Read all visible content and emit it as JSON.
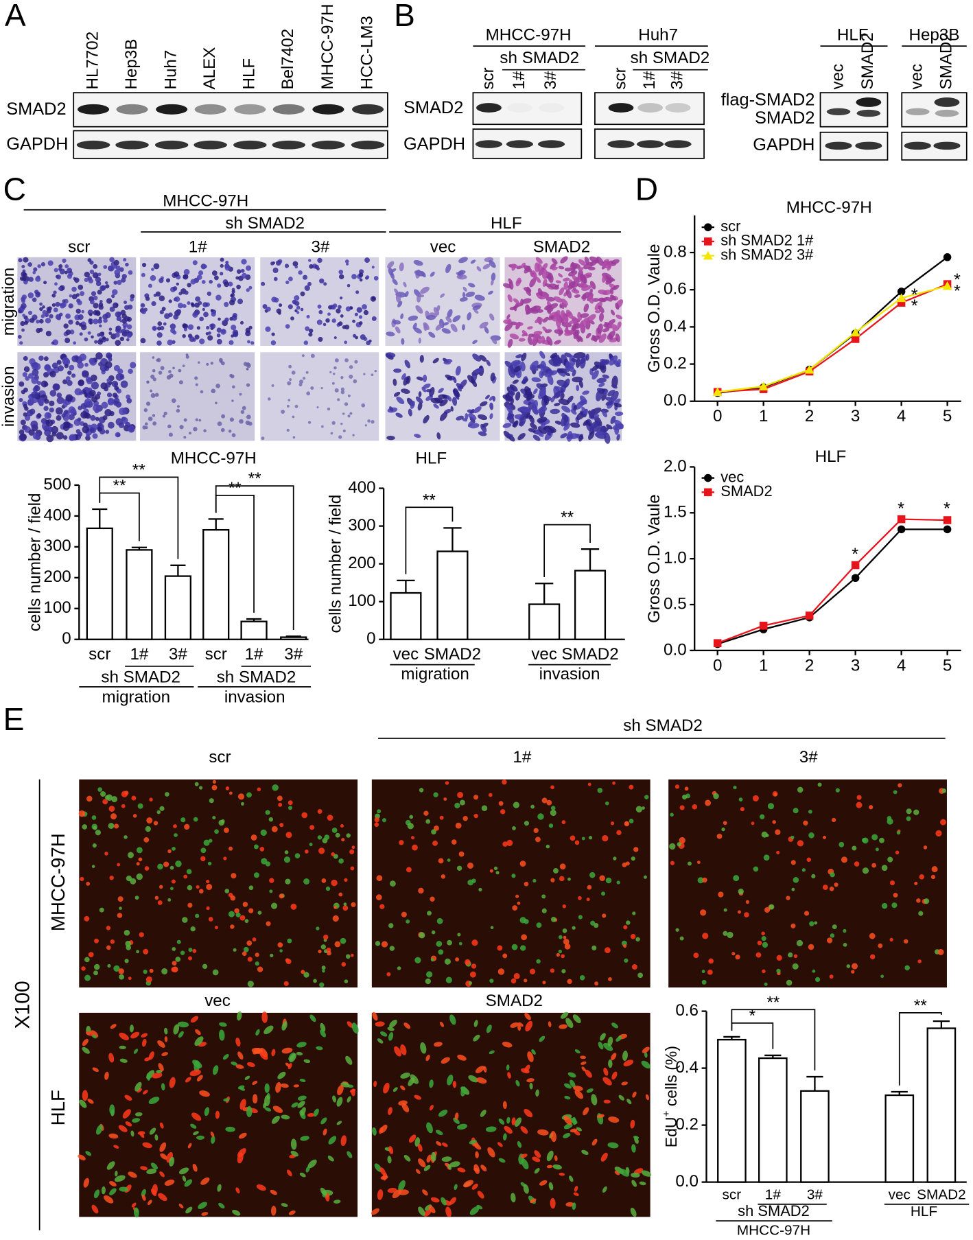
{
  "labels": [
    "A",
    "B",
    "C",
    "D",
    "E"
  ],
  "blot_a": {
    "lanes": [
      "HL7702",
      "Hep3B",
      "Huh7",
      "ALEX",
      "HLF",
      "Bel7402",
      "MHCC-97H",
      "HCC-LM3"
    ],
    "rows": [
      "SMAD2",
      "GAPDH"
    ]
  },
  "blot_b": {
    "rows": [
      "SMAD2",
      "GAPDH"
    ],
    "groups": [
      {
        "title": "MHCC-97H",
        "sub": "sh SMAD2",
        "lanes": [
          "scr",
          "1#",
          "3#"
        ]
      },
      {
        "title": "Huh7",
        "sub": "sh SMAD2",
        "lanes": [
          "scr",
          "1#",
          "3#"
        ]
      }
    ],
    "over_rows": [
      "flag-SMAD2",
      "SMAD2",
      "GAPDH"
    ],
    "over_groups": [
      {
        "title": "HLF",
        "lanes": [
          "vec",
          "SMAD2"
        ]
      },
      {
        "title": "Hep3B",
        "lanes": [
          "vec",
          "SMAD2"
        ]
      }
    ]
  },
  "transwell": {
    "title": "MHCC-97H",
    "sub": "sh SMAD2",
    "title2": "HLF",
    "columns": [
      "scr",
      "1#",
      "3#",
      "vec",
      "SMAD2"
    ],
    "rows": [
      "migration",
      "invasion"
    ]
  },
  "edu_images": {
    "group": "sh SMAD2",
    "columns": [
      "scr",
      "1#",
      "3#"
    ],
    "columns2": [
      "vec",
      "SMAD2"
    ],
    "rows": [
      "MHCC-97H",
      "HLF"
    ],
    "magnification": "X100"
  },
  "chart_data": [
    {
      "type": "bar",
      "title": "MHCC-97H",
      "ylabel": "cells number / field",
      "categories": [
        "scr",
        "1#",
        "3#",
        "scr",
        "1#",
        "3#"
      ],
      "values": [
        360,
        290,
        205,
        355,
        58,
        7
      ],
      "errors": [
        62,
        8,
        35,
        35,
        8,
        3
      ],
      "color": "#ffffff",
      "ylim": [
        0,
        500
      ],
      "yticks": [
        0,
        100,
        200,
        300,
        400,
        500
      ],
      "group_labels": [
        "sh SMAD2",
        "sh SMAD2"
      ],
      "condition_labels": [
        "migration",
        "invasion"
      ],
      "annotations": [
        "**",
        "**",
        "**",
        "**"
      ]
    },
    {
      "type": "bar",
      "title": "HLF",
      "ylabel": "cells number / field",
      "categories": [
        "vec",
        "SMAD2",
        "vec",
        "SMAD2"
      ],
      "values": [
        123,
        233,
        93,
        182
      ],
      "errors": [
        33,
        62,
        55,
        57
      ],
      "color": "#ffffff",
      "ylim": [
        0,
        400
      ],
      "yticks": [
        0,
        100,
        200,
        300,
        400
      ],
      "condition_labels": [
        "migration",
        "invasion"
      ],
      "annotations": [
        "**",
        "**"
      ]
    },
    {
      "type": "line",
      "title": "MHCC-97H",
      "ylabel": "Gross O.D. Vaule",
      "x": [
        0,
        1,
        2,
        3,
        4,
        5
      ],
      "xlim": [
        -0.5,
        5.3
      ],
      "xticks": [
        0,
        1,
        2,
        3,
        4,
        5
      ],
      "ylim": [
        0,
        1.0
      ],
      "yticks": [
        {
          "value": 0,
          "label": "0.0"
        },
        0.2,
        0.4,
        0.6,
        0.8
      ],
      "series": [
        {
          "name": "scr",
          "color": "#000000",
          "marker": "circle",
          "values": [
            0.045,
            0.075,
            0.17,
            0.365,
            0.59,
            0.775
          ]
        },
        {
          "name": "sh SMAD2 1#",
          "color": "#e8141c",
          "marker": "square",
          "values": [
            0.05,
            0.065,
            0.16,
            0.335,
            0.53,
            0.63
          ]
        },
        {
          "name": "sh SMAD2 3#",
          "color": "#f2e600",
          "marker": "triangle",
          "values": [
            0.05,
            0.08,
            0.17,
            0.37,
            0.555,
            0.62
          ]
        }
      ],
      "annotations": [
        "*",
        "*",
        "*",
        "*"
      ]
    },
    {
      "type": "line",
      "title": "HLF",
      "ylabel": "Gross O.D. Vaule",
      "x": [
        0,
        1,
        2,
        3,
        4,
        5
      ],
      "xlim": [
        -0.5,
        5.3
      ],
      "xticks": [
        0,
        1,
        2,
        3,
        4,
        5
      ],
      "ylim": [
        0,
        2.0
      ],
      "yticks": [
        {
          "value": 0,
          "label": "0.0"
        },
        0.5,
        {
          "value": 1,
          "label": "1.0"
        },
        1.5,
        {
          "value": 2,
          "label": "2.0"
        }
      ],
      "series": [
        {
          "name": "vec",
          "color": "#000000",
          "marker": "circle",
          "values": [
            0.07,
            0.23,
            0.36,
            0.79,
            1.32,
            1.32
          ]
        },
        {
          "name": "SMAD2",
          "color": "#e8141c",
          "marker": "square",
          "values": [
            0.08,
            0.27,
            0.38,
            0.93,
            1.43,
            1.42
          ]
        }
      ],
      "annotations": [
        "*",
        "*",
        "*"
      ]
    },
    {
      "type": "bar",
      "ylabel": "EdU",
      "ylabel_sup": "+",
      "ylabel_rest": " cells (%)",
      "categories": [
        "scr",
        "1#",
        "3#",
        "vec",
        "SMAD2"
      ],
      "values": [
        0.5,
        0.435,
        0.32,
        0.305,
        0.54
      ],
      "errors": [
        0.01,
        0.01,
        0.05,
        0.012,
        0.025
      ],
      "color": "#ffffff",
      "ylim": [
        0,
        0.6
      ],
      "yticks": [
        {
          "value": 0,
          "label": "0.0"
        },
        0.2,
        0.4,
        0.6
      ],
      "group_labels": [
        "sh SMAD2"
      ],
      "condition_labels": [
        "MHCC-97H",
        "HLF"
      ],
      "annotations": [
        "*",
        "**",
        "**"
      ]
    }
  ]
}
